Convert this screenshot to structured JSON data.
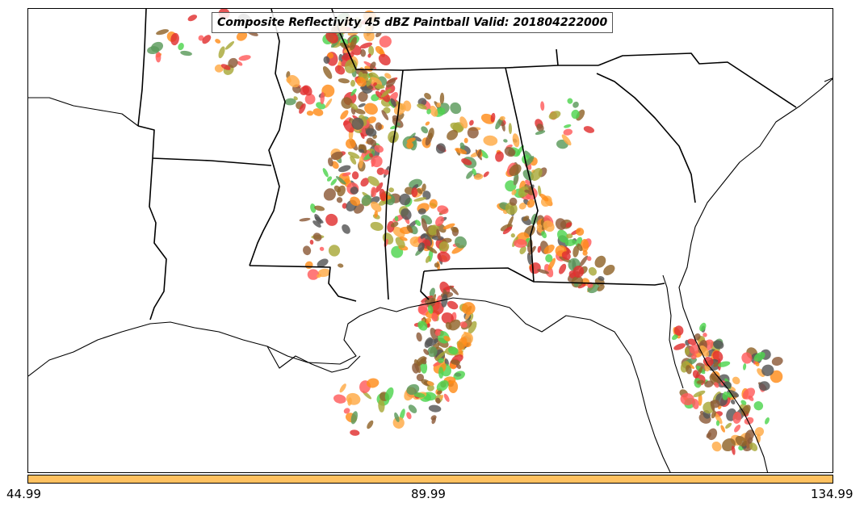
{
  "title": "Composite Reflectivity 45 dBZ Paintball Valid: 201804222000",
  "colorbar": {
    "color": "#FFC160",
    "ticks": [
      "44.99",
      "89.99",
      "134.99"
    ]
  },
  "map": {
    "region": "Southeastern United States",
    "paint_colors": [
      "#FF5C5C",
      "#4ED44E",
      "#FF8C1A",
      "#FFAA44",
      "#A8A838",
      "#8C5A38",
      "#555555",
      "#5A9A5A",
      "#E03030",
      "#90642A"
    ]
  }
}
